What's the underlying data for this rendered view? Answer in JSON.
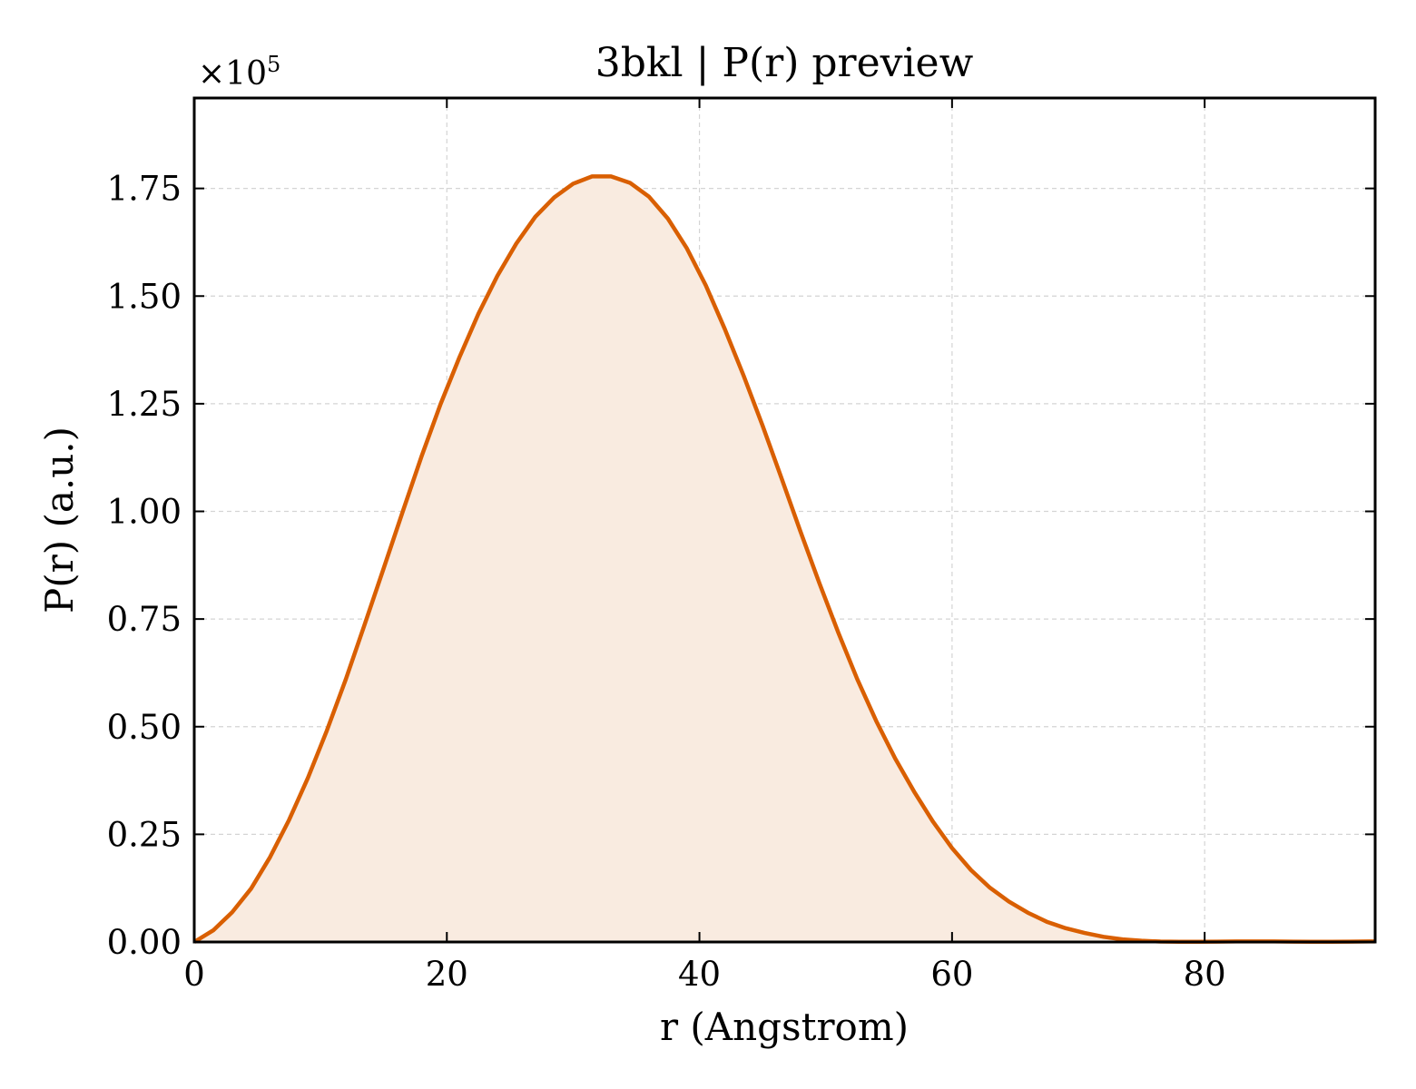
{
  "chart_data": {
    "type": "area",
    "title": "3bkl | P(r) preview",
    "xlabel": "r (Angstrom)",
    "ylabel": "P(r) (a.u.)",
    "y_multiplier": "×10",
    "y_multiplier_exponent": "5",
    "xlim": [
      0,
      93.5
    ],
    "ylim": [
      0,
      1.96
    ],
    "x_ticks": [
      0,
      20,
      40,
      60,
      80
    ],
    "x_tick_labels": [
      "0",
      "20",
      "40",
      "60",
      "80"
    ],
    "y_ticks": [
      0,
      0.25,
      0.5,
      0.75,
      1.0,
      1.25,
      1.5,
      1.75
    ],
    "y_tick_labels": [
      "0.00",
      "0.25",
      "0.50",
      "0.75",
      "1.00",
      "1.25",
      "1.50",
      "1.75"
    ],
    "grid": true,
    "line_color": "#d95f02",
    "fill_color": "#f9ebe0",
    "series": [
      {
        "x": [
          0,
          1.5,
          3,
          4.5,
          6,
          7.5,
          9,
          10.5,
          12,
          13.5,
          15,
          16.5,
          18,
          19.5,
          21,
          22.5,
          24,
          25.5,
          27,
          28.5,
          30,
          31.5,
          33,
          34.5,
          36,
          37.5,
          39,
          40.5,
          42,
          43.5,
          45,
          46.5,
          48,
          49.5,
          51,
          52.5,
          54,
          55.5,
          57,
          58.5,
          60,
          61.5,
          63,
          64.5,
          66,
          67.5,
          69,
          70.5,
          72,
          73.5,
          75,
          76.5,
          78,
          79.5,
          81,
          82.5,
          84,
          85.5,
          87,
          88.5,
          90,
          91.5,
          93
        ],
        "y": [
          0.0,
          0.027,
          0.069,
          0.124,
          0.197,
          0.283,
          0.381,
          0.491,
          0.61,
          0.738,
          0.868,
          0.999,
          1.128,
          1.249,
          1.358,
          1.459,
          1.547,
          1.622,
          1.684,
          1.729,
          1.761,
          1.778,
          1.778,
          1.763,
          1.731,
          1.68,
          1.611,
          1.525,
          1.424,
          1.315,
          1.199,
          1.077,
          0.953,
          0.833,
          0.718,
          0.61,
          0.513,
          0.426,
          0.349,
          0.279,
          0.218,
          0.167,
          0.126,
          0.094,
          0.068,
          0.047,
          0.032,
          0.021,
          0.012,
          0.006,
          0.003,
          0.001,
          0.0005,
          0.0004,
          0.0008,
          0.0012,
          0.0014,
          0.0012,
          0.0008,
          0.0004,
          0.0004,
          0.0008,
          0.0012
        ]
      }
    ]
  }
}
